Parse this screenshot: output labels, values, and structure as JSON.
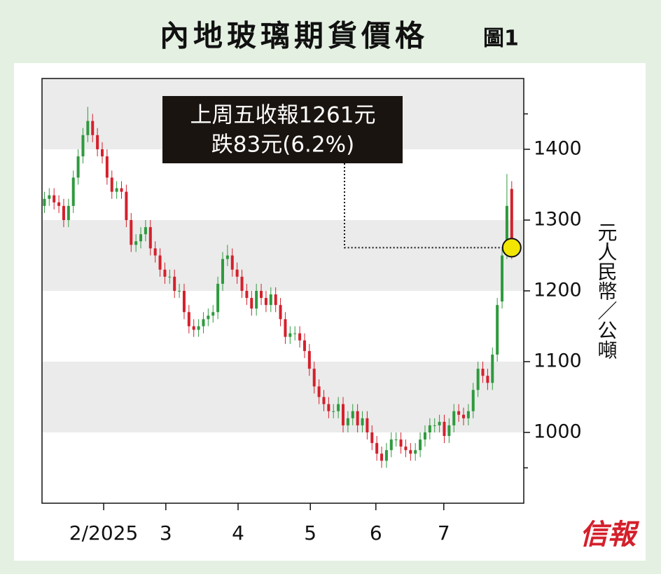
{
  "chart_data": {
    "type": "candlestick",
    "title": "內地玻璃期貨價格",
    "figure_label": "圖1",
    "y_label": "元人民幣／公噸",
    "logo": "信報",
    "annotation": [
      "上周五收報1261元",
      "跌83元(6.2%)"
    ],
    "up_color": "#2e9a3e",
    "down_color": "#d4202c",
    "band_color": "#ebebeb",
    "highlight_color": "#f2e600",
    "xlim": [
      -0.5,
      99.5
    ],
    "xticks": [
      {
        "value": 12.3,
        "label": "2/2025"
      },
      {
        "value": 25.2,
        "label": "3"
      },
      {
        "value": 40.2,
        "label": "4"
      },
      {
        "value": 55.2,
        "label": "5"
      },
      {
        "value": 68.8,
        "label": "6"
      },
      {
        "value": 82.9,
        "label": "7"
      }
    ],
    "ylim": [
      900,
      1500
    ],
    "yticks": [
      1000,
      1100,
      1200,
      1300,
      1400
    ],
    "yminorticks": [
      950,
      1450
    ],
    "open": [
      1320,
      1330,
      1335,
      1325,
      1320,
      1300,
      1320,
      1360,
      1390,
      1420,
      1440,
      1420,
      1400,
      1390,
      1360,
      1340,
      1345,
      1340,
      1300,
      1265,
      1270,
      1280,
      1290,
      1260,
      1250,
      1230,
      1220,
      1220,
      1200,
      1200,
      1170,
      1150,
      1145,
      1150,
      1160,
      1165,
      1170,
      1210,
      1245,
      1250,
      1230,
      1220,
      1200,
      1190,
      1175,
      1200,
      1190,
      1180,
      1195,
      1180,
      1160,
      1135,
      1140,
      1140,
      1130,
      1115,
      1090,
      1065,
      1050,
      1040,
      1030,
      1030,
      1040,
      1010,
      1020,
      1030,
      1010,
      1020,
      1000,
      985,
      970,
      960,
      975,
      990,
      990,
      980,
      975,
      970,
      975,
      990,
      1000,
      1010,
      1010,
      1015,
      995,
      1010,
      1030,
      1025,
      1020,
      1030,
      1060,
      1090,
      1080,
      1070,
      1110,
      1185,
      1255,
      1344
    ],
    "high": [
      1340,
      1345,
      1345,
      1335,
      1330,
      1330,
      1370,
      1400,
      1430,
      1460,
      1450,
      1430,
      1410,
      1400,
      1370,
      1355,
      1355,
      1350,
      1310,
      1280,
      1290,
      1300,
      1300,
      1270,
      1260,
      1240,
      1230,
      1230,
      1210,
      1210,
      1180,
      1160,
      1160,
      1170,
      1175,
      1180,
      1220,
      1255,
      1265,
      1260,
      1240,
      1230,
      1210,
      1200,
      1210,
      1210,
      1200,
      1205,
      1205,
      1190,
      1170,
      1150,
      1150,
      1150,
      1140,
      1125,
      1100,
      1075,
      1060,
      1050,
      1040,
      1050,
      1050,
      1030,
      1040,
      1040,
      1030,
      1030,
      1010,
      995,
      980,
      985,
      1000,
      1000,
      1000,
      990,
      985,
      985,
      1000,
      1010,
      1020,
      1020,
      1025,
      1025,
      1020,
      1040,
      1040,
      1035,
      1040,
      1070,
      1100,
      1100,
      1090,
      1120,
      1190,
      1260,
      1365,
      1355
    ],
    "low": [
      1310,
      1320,
      1315,
      1310,
      1290,
      1290,
      1310,
      1350,
      1380,
      1410,
      1410,
      1390,
      1380,
      1350,
      1330,
      1330,
      1330,
      1290,
      1255,
      1255,
      1260,
      1270,
      1250,
      1240,
      1220,
      1210,
      1210,
      1190,
      1190,
      1160,
      1140,
      1135,
      1135,
      1140,
      1150,
      1155,
      1160,
      1200,
      1235,
      1220,
      1210,
      1190,
      1180,
      1165,
      1165,
      1180,
      1170,
      1170,
      1170,
      1150,
      1125,
      1125,
      1130,
      1120,
      1105,
      1080,
      1055,
      1040,
      1030,
      1020,
      1020,
      1020,
      1000,
      1000,
      1010,
      1000,
      1000,
      990,
      975,
      960,
      950,
      950,
      965,
      980,
      970,
      965,
      960,
      960,
      965,
      980,
      990,
      1000,
      1000,
      985,
      985,
      1000,
      1015,
      1010,
      1010,
      1020,
      1050,
      1070,
      1060,
      1060,
      1100,
      1175,
      1245,
      1245
    ],
    "close": [
      1330,
      1335,
      1325,
      1320,
      1300,
      1320,
      1360,
      1390,
      1420,
      1440,
      1420,
      1400,
      1390,
      1360,
      1340,
      1345,
      1340,
      1300,
      1265,
      1270,
      1280,
      1290,
      1260,
      1250,
      1230,
      1220,
      1220,
      1200,
      1200,
      1170,
      1150,
      1145,
      1150,
      1160,
      1165,
      1170,
      1210,
      1245,
      1250,
      1230,
      1220,
      1200,
      1190,
      1175,
      1200,
      1190,
      1180,
      1195,
      1180,
      1160,
      1135,
      1140,
      1140,
      1130,
      1115,
      1090,
      1065,
      1050,
      1040,
      1030,
      1030,
      1040,
      1010,
      1020,
      1030,
      1010,
      1020,
      1000,
      985,
      970,
      960,
      975,
      990,
      990,
      980,
      975,
      970,
      975,
      990,
      1000,
      1010,
      1010,
      1015,
      995,
      1010,
      1030,
      1025,
      1020,
      1030,
      1060,
      1090,
      1080,
      1070,
      1110,
      1180,
      1250,
      1320,
      1261
    ]
  }
}
